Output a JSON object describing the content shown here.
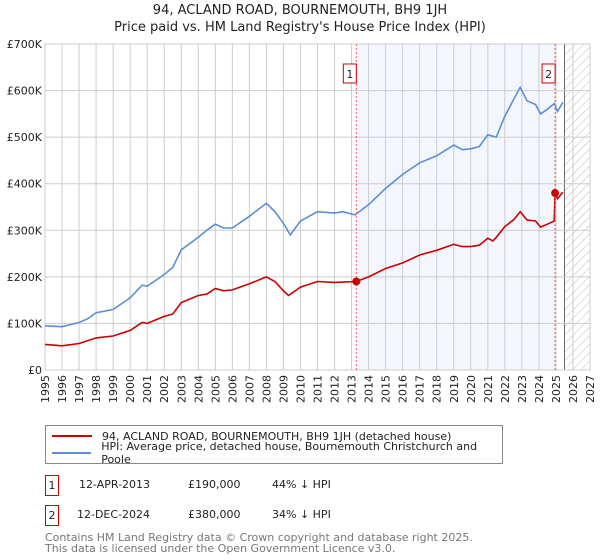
{
  "title": "94, ACLAND ROAD, BOURNEMOUTH, BH9 1JH",
  "subtitle": "Price paid vs. HM Land Registry's House Price Index (HPI)",
  "chart_data": {
    "type": "line",
    "title": "94, ACLAND ROAD, BOURNEMOUTH, BH9 1JH",
    "subtitle": "Price paid vs. HM Land Registry's House Price Index (HPI)",
    "xlim": [
      1995,
      2027
    ],
    "ylim": [
      0,
      700000
    ],
    "x_ticks": [
      "1995",
      "1996",
      "1997",
      "1998",
      "1999",
      "2000",
      "2001",
      "2002",
      "2003",
      "2004",
      "2005",
      "2006",
      "2007",
      "2008",
      "2009",
      "2010",
      "2011",
      "2012",
      "2013",
      "2014",
      "2015",
      "2016",
      "2017",
      "2018",
      "2019",
      "2020",
      "2021",
      "2022",
      "2023",
      "2024",
      "2025",
      "2026",
      "2027"
    ],
    "y_ticks": [
      {
        "v": 0,
        "label": "£0"
      },
      {
        "v": 100000,
        "label": "£100K"
      },
      {
        "v": 200000,
        "label": "£200K"
      },
      {
        "v": 300000,
        "label": "£300K"
      },
      {
        "v": 400000,
        "label": "£400K"
      },
      {
        "v": 500000,
        "label": "£500K"
      },
      {
        "v": 600000,
        "label": "£600K"
      },
      {
        "v": 700000,
        "label": "£700K"
      }
    ],
    "grid": true,
    "shaded_range": [
      2013.28,
      2024.95
    ],
    "forecast_hatch_from": 2025.5,
    "series": [
      {
        "name": "94, ACLAND ROAD, BOURNEMOUTH, BH9 1JH (detached house)",
        "color": "#cc0000",
        "x": [
          1995,
          1996,
          1997,
          1998,
          1999,
          2000,
          2000.7,
          2001,
          2002,
          2002.5,
          2003,
          2004,
          2004.5,
          2005,
          2005.5,
          2006,
          2007,
          2008,
          2008.5,
          2009,
          2009.3,
          2010,
          2011,
          2012,
          2013.28,
          2014,
          2015,
          2016,
          2017,
          2018,
          2019,
          2019.5,
          2020,
          2020.5,
          2021,
          2021.3,
          2021.5,
          2022,
          2022.5,
          2022.9,
          2023.3,
          2023.8,
          2024.1,
          2024.5,
          2024.9,
          2024.95,
          2025.1,
          2025.4
        ],
        "y": [
          55000,
          52000,
          57000,
          69000,
          73000,
          85000,
          102000,
          100000,
          115000,
          120000,
          145000,
          160000,
          163000,
          175000,
          170000,
          172000,
          185000,
          200000,
          190000,
          170000,
          160000,
          178000,
          190000,
          188000,
          190000,
          200000,
          218000,
          230000,
          247000,
          257000,
          270000,
          265000,
          265000,
          268000,
          283000,
          277000,
          285000,
          308000,
          322000,
          340000,
          322000,
          320000,
          307000,
          313000,
          320000,
          380000,
          368000,
          382000
        ]
      },
      {
        "name": "HPI: Average price, detached house, Bournemouth Christchurch and Poole",
        "color": "#5b8fd4",
        "x": [
          1995,
          1996,
          1997,
          1997.5,
          1998,
          1999,
          2000,
          2000.7,
          2001,
          2002,
          2002.5,
          2003,
          2004,
          2004.5,
          2005,
          2005.5,
          2006,
          2007,
          2008,
          2008.5,
          2009,
          2009.4,
          2010,
          2011,
          2012,
          2012.5,
          2013.2,
          2014,
          2015,
          2016,
          2017,
          2018,
          2019,
          2019.5,
          2020,
          2020.5,
          2021,
          2021.5,
          2022,
          2022.5,
          2022.9,
          2023.3,
          2023.8,
          2024.1,
          2024.5,
          2024.9,
          2025.1,
          2025.4
        ],
        "y": [
          95000,
          93000,
          102000,
          110000,
          123000,
          130000,
          155000,
          182000,
          180000,
          205000,
          220000,
          258000,
          285000,
          300000,
          313000,
          305000,
          305000,
          330000,
          358000,
          340000,
          315000,
          290000,
          320000,
          340000,
          337000,
          340000,
          333000,
          355000,
          390000,
          420000,
          445000,
          460000,
          483000,
          473000,
          475000,
          480000,
          505000,
          500000,
          545000,
          580000,
          607000,
          578000,
          570000,
          550000,
          560000,
          572000,
          555000,
          575000
        ]
      }
    ],
    "annotations": [
      {
        "label": "1",
        "x": 2013.28,
        "y": 190000
      },
      {
        "label": "2",
        "x": 2024.95,
        "y": 380000
      }
    ]
  },
  "legend": {
    "red": "94, ACLAND ROAD, BOURNEMOUTH, BH9 1JH (detached house)",
    "blue": "HPI: Average price, detached house, Bournemouth Christchurch and Poole"
  },
  "transactions": [
    {
      "num": "1",
      "date": "12-APR-2013",
      "price": "£190,000",
      "hpi": "44% ↓ HPI"
    },
    {
      "num": "2",
      "date": "12-DEC-2024",
      "price": "£380,000",
      "hpi": "34% ↓ HPI"
    }
  ],
  "footer": {
    "line1": "Contains HM Land Registry data © Crown copyright and database right 2025.",
    "line2": "This data is licensed under the Open Government Licence v3.0."
  }
}
